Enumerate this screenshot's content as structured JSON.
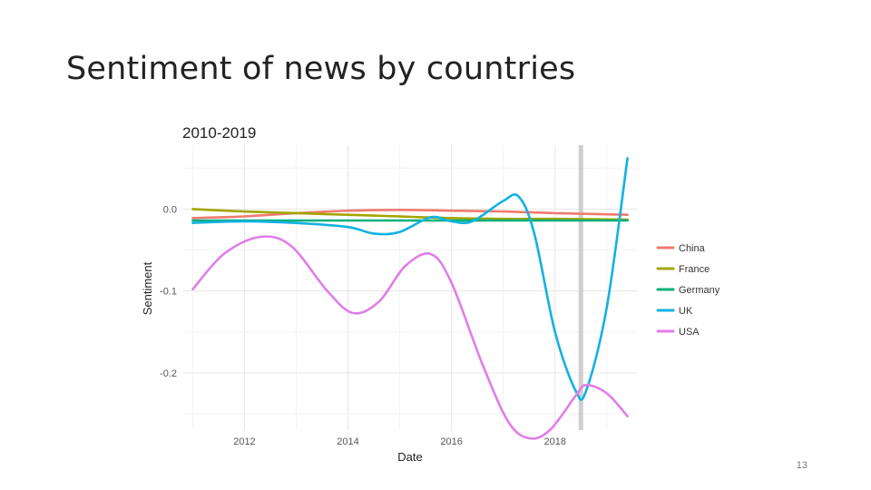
{
  "slide": {
    "title": "Sentiment of news by countries",
    "page_number": "13"
  },
  "chart_data": {
    "type": "line",
    "title": "2010-2019",
    "xlabel": "Date",
    "ylabel": "Sentiment",
    "xlim": [
      2010.8,
      2019.6
    ],
    "ylim": [
      -0.27,
      0.078
    ],
    "x_ticks": [
      2012,
      2014,
      2016,
      2018
    ],
    "y_ticks": [
      0.0,
      -0.1,
      -0.2
    ],
    "y_tick_labels": [
      "0.0",
      "-0.1",
      "-0.2"
    ],
    "grid": true,
    "legend_position": "right",
    "highlight_band": {
      "x": 2018.5,
      "color": "#cfcfcf"
    },
    "series": [
      {
        "name": "China",
        "color": "#f07a6e",
        "x": [
          2011,
          2012,
          2013,
          2014,
          2015,
          2016,
          2017,
          2018,
          2019.4
        ],
        "y": [
          -0.011,
          -0.009,
          -0.005,
          -0.002,
          -0.001,
          -0.002,
          -0.003,
          -0.005,
          -0.007
        ]
      },
      {
        "name": "France",
        "color": "#a3a500",
        "x": [
          2011,
          2012,
          2013,
          2014,
          2015,
          2016,
          2017,
          2018,
          2019.4
        ],
        "y": [
          0.0,
          -0.003,
          -0.005,
          -0.007,
          -0.009,
          -0.011,
          -0.012,
          -0.012,
          -0.013
        ]
      },
      {
        "name": "Germany",
        "color": "#00b07a",
        "x": [
          2011,
          2012,
          2013,
          2014,
          2015,
          2016,
          2017,
          2018,
          2019.4
        ],
        "y": [
          -0.014,
          -0.014,
          -0.014,
          -0.014,
          -0.014,
          -0.014,
          -0.014,
          -0.014,
          -0.014
        ]
      },
      {
        "name": "UK",
        "color": "#12b2e0",
        "x": [
          2011,
          2012,
          2013,
          2014,
          2014.5,
          2015,
          2015.6,
          2016,
          2016.4,
          2017,
          2017.3,
          2017.6,
          2018,
          2018.4,
          2018.6,
          2019,
          2019.4
        ],
        "y": [
          -0.017,
          -0.015,
          -0.017,
          -0.022,
          -0.03,
          -0.028,
          -0.01,
          -0.015,
          -0.015,
          0.01,
          0.015,
          -0.03,
          -0.15,
          -0.222,
          -0.222,
          -0.12,
          0.062
        ]
      },
      {
        "name": "USA",
        "color": "#e07ee8",
        "x": [
          2011,
          2011.6,
          2012.3,
          2012.9,
          2013.6,
          2014.1,
          2014.6,
          2015.1,
          2015.6,
          2016.0,
          2016.6,
          2017.1,
          2017.5,
          2017.9,
          2018.4,
          2018.6,
          2019.0,
          2019.4
        ],
        "y": [
          -0.098,
          -0.055,
          -0.034,
          -0.045,
          -0.1,
          -0.127,
          -0.113,
          -0.07,
          -0.055,
          -0.09,
          -0.19,
          -0.26,
          -0.28,
          -0.27,
          -0.228,
          -0.215,
          -0.225,
          -0.253
        ]
      }
    ]
  }
}
